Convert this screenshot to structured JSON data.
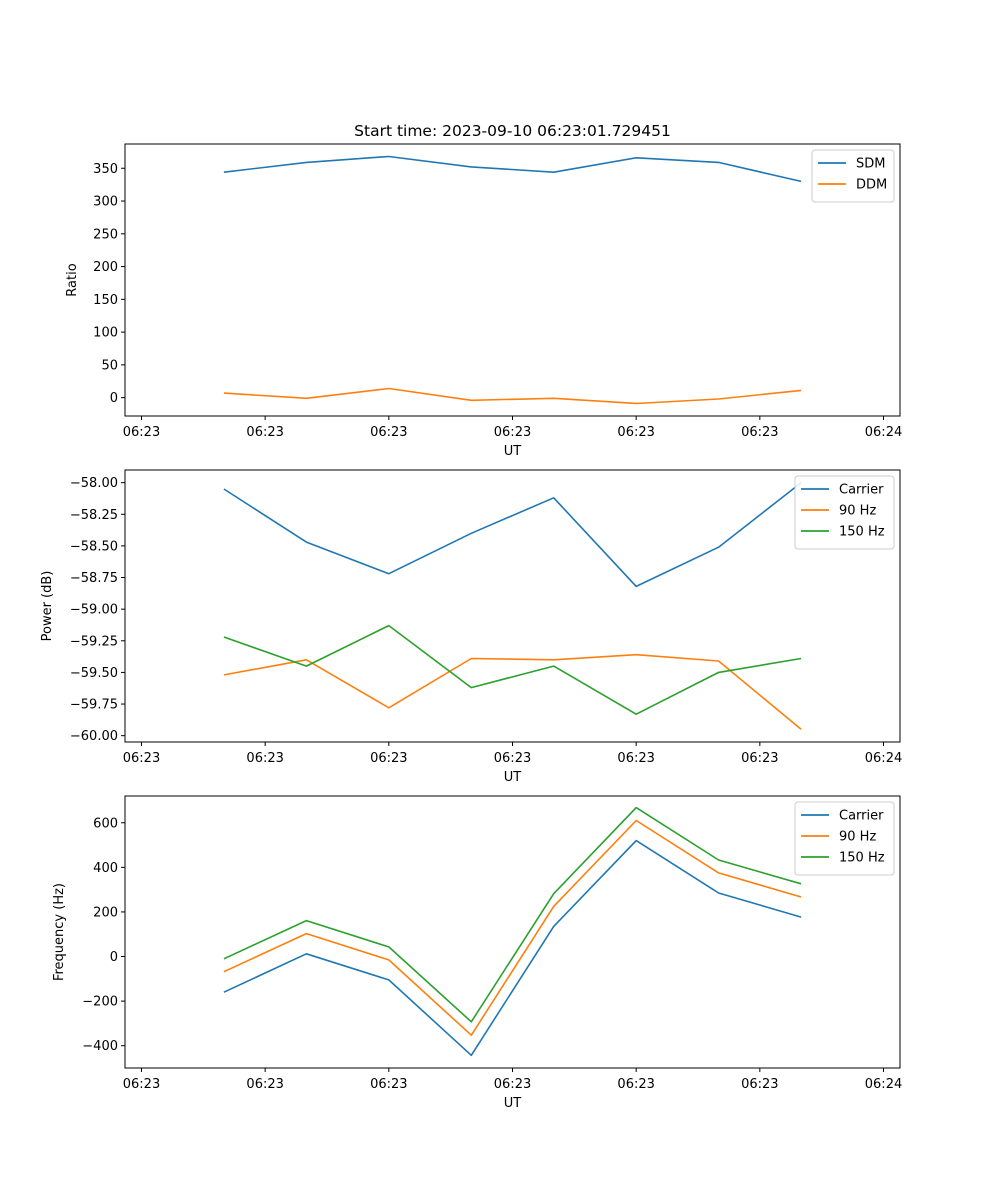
{
  "colors": {
    "blue": "#1f77b4",
    "orange": "#ff7f0e",
    "green": "#2ca02c"
  },
  "chart_data": [
    {
      "type": "line",
      "title": "Start time: 2023-09-10 06:23:01.729451",
      "xlabel": "UT",
      "ylabel": "Ratio",
      "x_index": [
        1,
        2,
        3,
        4,
        5,
        6,
        7,
        8
      ],
      "xlim": [
        -0.2,
        9.2
      ],
      "ylim": [
        -28,
        387
      ],
      "yticks": [
        0,
        50,
        100,
        150,
        200,
        250,
        300,
        350
      ],
      "ytick_labels": [
        "0",
        "50",
        "100",
        "150",
        "200",
        "250",
        "300",
        "350"
      ],
      "xticks": [
        0,
        1.5,
        3,
        4.5,
        6,
        7.5,
        9
      ],
      "xtick_labels": [
        "06:23",
        "06:23",
        "06:23",
        "06:23",
        "06:23",
        "06:23",
        "06:24"
      ],
      "legend_position": "top-right",
      "series": [
        {
          "name": "SDM",
          "color": "blue",
          "values": [
            344,
            359,
            368,
            352,
            344,
            366,
            359,
            330
          ]
        },
        {
          "name": "DDM",
          "color": "orange",
          "values": [
            7,
            -1,
            14,
            -4,
            -1,
            -9,
            -2,
            11
          ]
        }
      ]
    },
    {
      "type": "line",
      "title": "",
      "xlabel": "UT",
      "ylabel": "Power (dB)",
      "x_index": [
        1,
        2,
        3,
        4,
        5,
        6,
        7,
        8
      ],
      "xlim": [
        -0.2,
        9.2
      ],
      "ylim": [
        -60.05,
        -57.9
      ],
      "yticks": [
        -60.0,
        -59.75,
        -59.5,
        -59.25,
        -59.0,
        -58.75,
        -58.5,
        -58.25,
        -58.0
      ],
      "ytick_labels": [
        "−60.00",
        "−59.75",
        "−59.50",
        "−59.25",
        "−59.00",
        "−58.75",
        "−58.50",
        "−58.25",
        "−58.00"
      ],
      "xticks": [
        0,
        1.5,
        3,
        4.5,
        6,
        7.5,
        9
      ],
      "xtick_labels": [
        "06:23",
        "06:23",
        "06:23",
        "06:23",
        "06:23",
        "06:23",
        "06:24"
      ],
      "legend_position": "top-right",
      "series": [
        {
          "name": "Carrier",
          "color": "blue",
          "values": [
            -58.05,
            -58.47,
            -58.72,
            -58.4,
            -58.12,
            -58.82,
            -58.51,
            -58.0
          ]
        },
        {
          "name": "90 Hz",
          "color": "orange",
          "values": [
            -59.52,
            -59.4,
            -59.78,
            -59.39,
            -59.4,
            -59.36,
            -59.41,
            -59.95
          ]
        },
        {
          "name": "150 Hz",
          "color": "green",
          "values": [
            -59.22,
            -59.45,
            -59.13,
            -59.62,
            -59.45,
            -59.83,
            -59.5,
            -59.39
          ]
        }
      ]
    },
    {
      "type": "line",
      "title": "",
      "xlabel": "UT",
      "ylabel": "Frequency (Hz)",
      "x_index": [
        1,
        2,
        3,
        4,
        5,
        6,
        7,
        8
      ],
      "xlim": [
        -0.2,
        9.2
      ],
      "ylim": [
        -500,
        720
      ],
      "yticks": [
        -400,
        -200,
        0,
        200,
        400,
        600
      ],
      "ytick_labels": [
        "−400",
        "−200",
        "0",
        "200",
        "400",
        "600"
      ],
      "xticks": [
        0,
        1.5,
        3,
        4.5,
        6,
        7.5,
        9
      ],
      "xtick_labels": [
        "06:23",
        "06:23",
        "06:23",
        "06:23",
        "06:23",
        "06:23",
        "06:24"
      ],
      "legend_position": "top-right",
      "series": [
        {
          "name": "Carrier",
          "color": "blue",
          "values": [
            -160,
            12,
            -105,
            -443,
            135,
            520,
            285,
            177
          ]
        },
        {
          "name": "90 Hz",
          "color": "orange",
          "values": [
            -68,
            103,
            -15,
            -353,
            225,
            610,
            375,
            267
          ]
        },
        {
          "name": "150 Hz",
          "color": "green",
          "values": [
            -10,
            161,
            43,
            -293,
            282,
            668,
            433,
            326
          ]
        }
      ]
    }
  ]
}
